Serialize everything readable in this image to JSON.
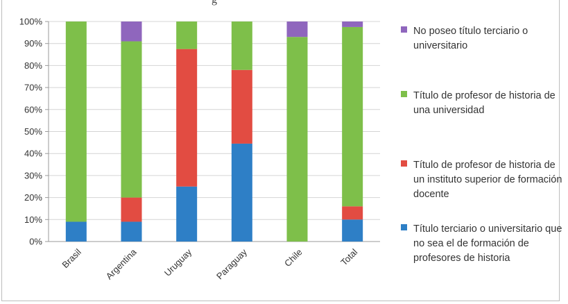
{
  "caption": "g",
  "chart_data": {
    "type": "bar",
    "stacked": true,
    "categories": [
      "Brasil",
      "Argentina",
      "Uruguay",
      "Paraguay",
      "Chile",
      "Total"
    ],
    "y_ticks": [
      "0%",
      "10%",
      "20%",
      "30%",
      "40%",
      "50%",
      "60%",
      "70%",
      "80%",
      "90%",
      "100%"
    ],
    "ylim": [
      0,
      100
    ],
    "grid": true,
    "legend_position": "right",
    "series": [
      {
        "name": "Título terciario o universitario que no sea el de formación de profesores de historia",
        "color": "#2e7fc6",
        "values": [
          9,
          9,
          25,
          44.5,
          0,
          10
        ]
      },
      {
        "name": "Título de profesor de historia de un instituto superior de formación docente",
        "color": "#e24c42",
        "values": [
          0,
          11,
          62.5,
          33.5,
          0,
          6
        ]
      },
      {
        "name": "Título de profesor de historia de una universidad",
        "color": "#7ebf4a",
        "values": [
          91,
          71,
          12.5,
          22,
          93,
          81.5
        ]
      },
      {
        "name": "No poseo título terciario o universitario",
        "color": "#8f66bd",
        "values": [
          0,
          9,
          0,
          0,
          7,
          2.5
        ]
      }
    ]
  }
}
